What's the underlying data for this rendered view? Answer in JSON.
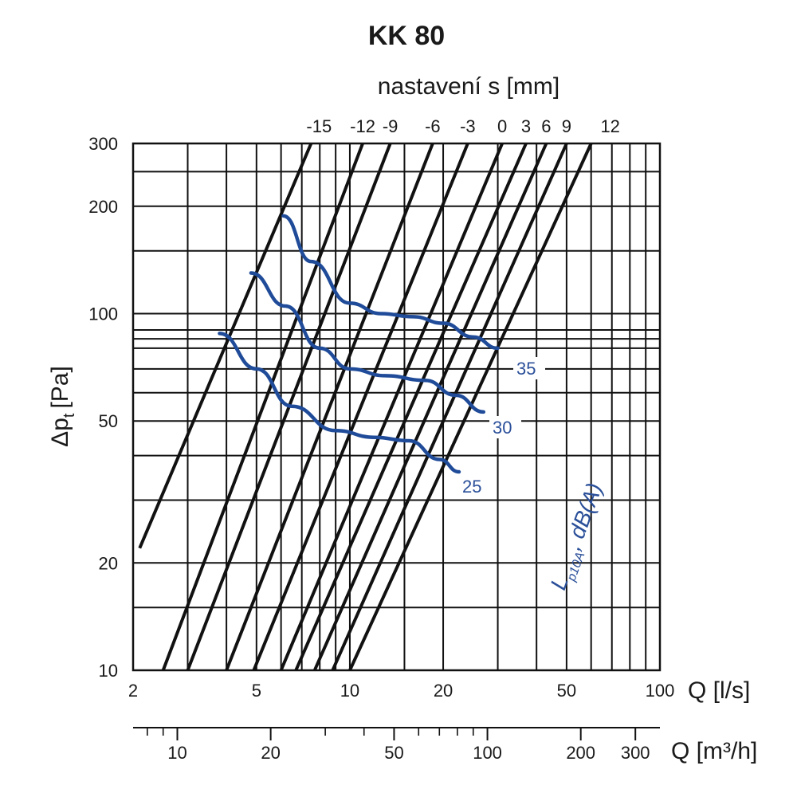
{
  "chart_data": {
    "type": "line",
    "title": "KK 80",
    "top_axis_label": "nastavení s [mm]",
    "setting_labels": [
      "-15",
      "-12",
      "-9",
      "-6",
      "-3",
      "0",
      "3",
      "6",
      "9",
      "12"
    ],
    "xlabel": "Q [l/s]",
    "x2label": "Q [m³/h]",
    "ylabel": "Δp",
    "ylabel_sub": "t",
    "ylabel_unit": "[Pa]",
    "x_scale": "log",
    "y_scale": "log",
    "xlim": [
      2,
      100
    ],
    "ylim": [
      10,
      300
    ],
    "x_ticks": [
      2,
      5,
      10,
      20,
      50,
      100
    ],
    "x_tick_labels": [
      "2",
      "5",
      "10",
      "20",
      "50",
      "100"
    ],
    "x_grid": [
      2,
      3,
      4,
      5,
      6,
      7,
      8,
      9,
      10,
      15,
      20,
      30,
      40,
      50,
      60,
      70,
      80,
      90,
      100
    ],
    "y_ticks": [
      10,
      20,
      50,
      100,
      200,
      300
    ],
    "y_tick_labels": [
      "10",
      "20",
      "50",
      "100",
      "200",
      "300"
    ],
    "y_grid": [
      10,
      15,
      20,
      30,
      40,
      50,
      60,
      70,
      80,
      85,
      90,
      100,
      150,
      200,
      250,
      300
    ],
    "x2_ticks": [
      10,
      20,
      50,
      100,
      200,
      300
    ],
    "x2_tick_labels": [
      "10",
      "20",
      "50",
      "100",
      "200",
      "300"
    ],
    "x2_minor": [
      8,
      9,
      30,
      40,
      60,
      70,
      80,
      90,
      400
    ],
    "setting_series": [
      {
        "name": "-15",
        "x": [
          2.1,
          7.5
        ],
        "y": [
          22,
          300
        ]
      },
      {
        "name": "-12",
        "x": [
          2.5,
          11.0
        ],
        "y": [
          10,
          300
        ]
      },
      {
        "name": "-9",
        "x": [
          3.0,
          13.5
        ],
        "y": [
          10,
          300
        ]
      },
      {
        "name": "-6",
        "x": [
          4.0,
          18.5
        ],
        "y": [
          10,
          300
        ]
      },
      {
        "name": "-3",
        "x": [
          4.9,
          24.0
        ],
        "y": [
          10,
          300
        ]
      },
      {
        "name": "0",
        "x": [
          6.0,
          31.0
        ],
        "y": [
          10,
          300
        ]
      },
      {
        "name": "3",
        "x": [
          6.7,
          37.0
        ],
        "y": [
          10,
          300
        ]
      },
      {
        "name": "6",
        "x": [
          7.7,
          43.0
        ],
        "y": [
          10,
          300
        ]
      },
      {
        "name": "9",
        "x": [
          8.8,
          50.0
        ],
        "y": [
          10,
          300
        ]
      },
      {
        "name": "12",
        "x": [
          10.0,
          60.0
        ],
        "y": [
          10,
          300
        ]
      }
    ],
    "noise_series": [
      {
        "name": "35",
        "x": [
          6.1,
          7.5,
          10.0,
          12.6,
          16.0,
          20.0,
          25.0,
          30.0
        ],
        "y": [
          188,
          140,
          107,
          100,
          98,
          94,
          86,
          80
        ]
      },
      {
        "name": "30",
        "x": [
          4.8,
          6.2,
          8.0,
          10.0,
          13.0,
          17.5,
          22.0,
          27.0
        ],
        "y": [
          130,
          105,
          80,
          70,
          67,
          65,
          59,
          53
        ]
      },
      {
        "name": "25",
        "x": [
          3.8,
          5.0,
          6.5,
          9.0,
          12.0,
          15.5,
          19.5,
          22.5
        ],
        "y": [
          88,
          70,
          55,
          47,
          45,
          44,
          39,
          36
        ]
      }
    ],
    "noise_axis_label": "L",
    "noise_axis_label_sub": "p10A",
    "noise_axis_label_unit": ", dB(A)"
  }
}
